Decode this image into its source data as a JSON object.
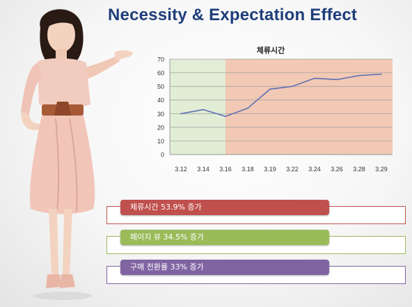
{
  "header": {
    "title": "Necessity & Expectation Effect"
  },
  "chart_data": {
    "type": "line",
    "title": "체류시간",
    "categories": [
      "3.12",
      "3.14",
      "3.16",
      "3.18",
      "3.19",
      "3.22",
      "3.24",
      "3.26",
      "3.28",
      "3.29"
    ],
    "series": [
      {
        "values": [
          30,
          33,
          28,
          34,
          48,
          50,
          56,
          55,
          58,
          59
        ]
      }
    ],
    "ylim": [
      0,
      70
    ],
    "yticks": [
      0,
      10,
      20,
      30,
      40,
      50,
      60,
      70
    ],
    "grid": true,
    "shaded_regions": [
      {
        "from": "3.12",
        "to": "3.16",
        "color": "#e2edd6"
      },
      {
        "from": "3.16",
        "to": "3.29",
        "color": "#f2c9b4"
      }
    ],
    "line_color": "#5b6fb5"
  },
  "results": [
    {
      "label": "체류시간 53.9% 증가",
      "color": "#c0504d"
    },
    {
      "label": "페이지 뷰 34.5% 증가",
      "color": "#9bbb59"
    },
    {
      "label": "구매 전환률 33% 증가",
      "color": "#8064a2"
    }
  ]
}
